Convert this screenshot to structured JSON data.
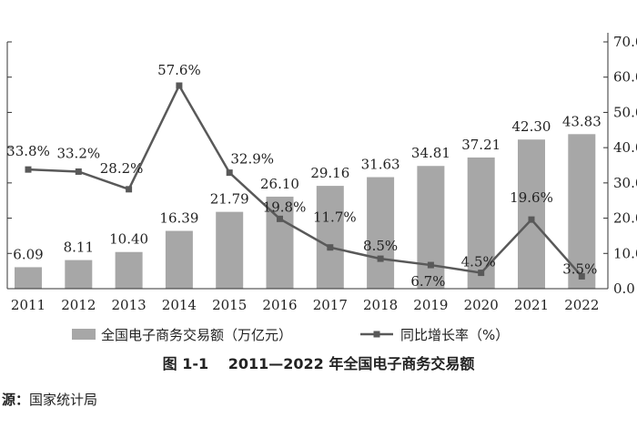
{
  "chart_data": {
    "type": "bar+line",
    "categories": [
      "2011",
      "2012",
      "2013",
      "2014",
      "2015",
      "2016",
      "2017",
      "2018",
      "2019",
      "2020",
      "2021",
      "2022"
    ],
    "series": [
      {
        "name": "全国电子商务交易额（万亿元）",
        "type": "bar",
        "axis": "right",
        "values": [
          6.09,
          8.11,
          10.4,
          16.39,
          21.79,
          26.1,
          29.16,
          31.63,
          34.81,
          37.21,
          42.3,
          43.83
        ],
        "labels": [
          "6.09",
          "8.11",
          "10.40",
          "16.39",
          "21.79",
          "26.10",
          "29.16",
          "31.63",
          "34.81",
          "37.21",
          "42.30",
          "43.83"
        ],
        "color": "#a7a7a7"
      },
      {
        "name": "同比增长率（%）",
        "type": "line",
        "axis": "right",
        "values": [
          33.8,
          33.2,
          28.2,
          57.6,
          32.9,
          19.8,
          11.7,
          8.5,
          6.7,
          4.5,
          19.6,
          3.5
        ],
        "labels": [
          "33.8%",
          "33.2%",
          "28.2%",
          "57.6%",
          "32.9%",
          "19.8%",
          "11.7%",
          "8.5%",
          "6.7%",
          "4.5%",
          "19.6%",
          "3.5%"
        ],
        "color": "#595959"
      }
    ],
    "right_axis": {
      "ylim": [
        0,
        70
      ],
      "ticks": [
        "0.0",
        "10.0",
        "20.0",
        "30.0",
        "40.0",
        "50.0",
        "60.0",
        "70.0"
      ]
    },
    "legend_position": "bottom"
  },
  "caption": "图 1-1　 2011—2022 年全国电子商务交易额",
  "source": {
    "label": "源：",
    "text": "国家统计局"
  }
}
